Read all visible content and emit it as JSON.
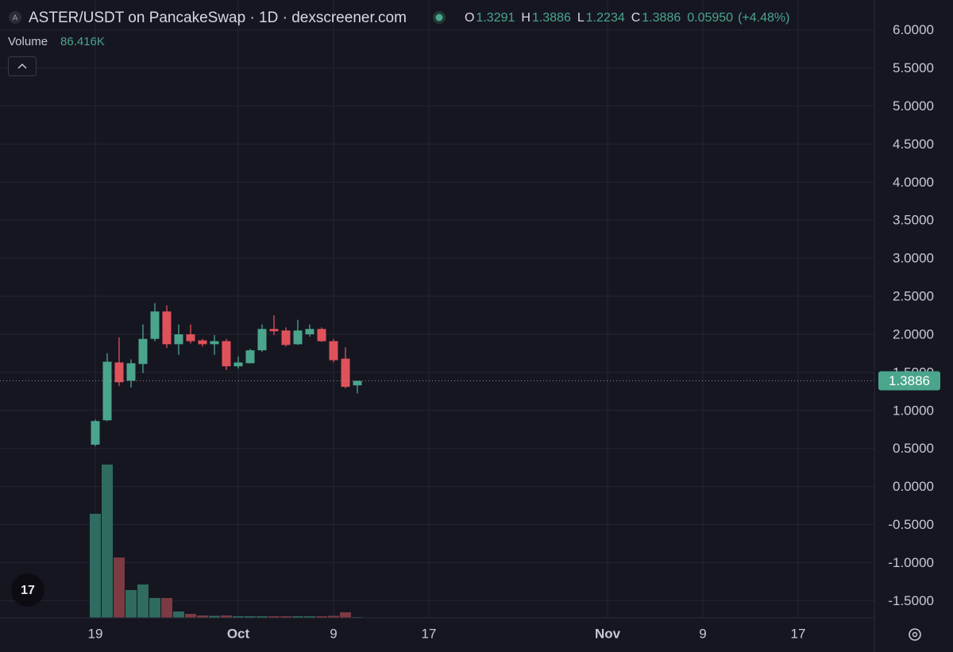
{
  "chart_data": {
    "type": "candlestick",
    "title": "ASTER/USDT on PancakeSwap · 1D · dexscreener.com",
    "ohlc_letters": [
      "O",
      "H",
      "L",
      "C"
    ],
    "change_label": "0.05950",
    "change_pct_label": "(+4.48%)",
    "x": [
      19,
      20,
      21,
      22,
      23,
      24,
      25,
      26,
      27,
      28,
      29,
      30,
      31,
      32,
      33,
      34,
      35,
      36,
      37,
      38,
      39,
      40,
      41
    ],
    "open": [
      0.55,
      0.87,
      1.63,
      1.39,
      1.61,
      1.94,
      2.3,
      1.87,
      2.0,
      1.92,
      1.87,
      1.91,
      1.58,
      1.62,
      1.79,
      2.07,
      2.05,
      1.87,
      2.0,
      2.07,
      1.91,
      1.68,
      1.3291
    ],
    "high": [
      0.88,
      1.75,
      1.96,
      1.67,
      2.13,
      2.41,
      2.38,
      2.13,
      2.13,
      1.94,
      1.99,
      1.94,
      1.71,
      1.81,
      2.13,
      2.25,
      2.09,
      2.19,
      2.13,
      2.09,
      1.94,
      1.83,
      1.3886
    ],
    "low": [
      0.53,
      0.86,
      1.32,
      1.3,
      1.49,
      1.91,
      1.82,
      1.73,
      1.88,
      1.84,
      1.73,
      1.53,
      1.55,
      1.62,
      1.77,
      1.99,
      1.84,
      1.86,
      1.97,
      1.9,
      1.63,
      1.29,
      1.2234
    ],
    "close": [
      0.86,
      1.64,
      1.37,
      1.62,
      1.94,
      2.3,
      1.87,
      2.0,
      1.91,
      1.87,
      1.91,
      1.58,
      1.63,
      1.79,
      2.07,
      2.04,
      1.86,
      2.05,
      2.07,
      1.91,
      1.66,
      1.31,
      1.3886
    ],
    "volume": {
      "name": "Volume",
      "values": [
        13100000,
        19300000,
        7600000,
        3500000,
        4200000,
        2500000,
        2500000,
        800000,
        500000,
        300000,
        250000,
        300000,
        200000,
        200000,
        200000,
        200000,
        200000,
        200000,
        200000,
        200000,
        250000,
        700000,
        86416
      ],
      "value_labels": [
        null,
        null,
        null,
        null,
        null,
        null,
        null,
        null,
        null,
        null,
        null,
        null,
        null,
        null,
        null,
        null,
        null,
        null,
        null,
        null,
        null,
        null,
        "86.416K"
      ]
    },
    "up_color": "#4aa58c",
    "down_color": "#e0525a",
    "volume_up_color": "#2f6b5f",
    "volume_down_color": "#7c3a42",
    "xlim": [
      11,
      84.4
    ],
    "xticks": [
      19,
      {
        "value": 31,
        "label": "Oct"
      },
      {
        "value": 39,
        "label": "9"
      },
      {
        "value": 47,
        "label": "17"
      },
      {
        "value": 62,
        "label": "Nov"
      },
      {
        "value": 70,
        "label": "9"
      },
      {
        "value": 78,
        "label": "17"
      }
    ],
    "ylim": [
      -1.7261,
      6.3934
    ],
    "yticks": [
      {
        "value": 6,
        "label": "6.0000"
      },
      {
        "value": 5.5,
        "label": "5.5000"
      },
      {
        "value": 5,
        "label": "5.0000"
      },
      {
        "value": 4.5,
        "label": "4.5000"
      },
      {
        "value": 4,
        "label": "4.0000"
      },
      {
        "value": 3.5,
        "label": "3.5000"
      },
      {
        "value": 3,
        "label": "3.0000"
      },
      {
        "value": 2.5,
        "label": "2.5000"
      },
      {
        "value": 2,
        "label": "2.0000"
      },
      {
        "value": 1.5,
        "label": "1.5000"
      },
      {
        "value": 1,
        "label": "1.0000"
      },
      {
        "value": 0.5,
        "label": "0.5000"
      },
      {
        "value": 0,
        "label": "0.0000"
      },
      {
        "value": -0.5,
        "label": "-0.5000"
      },
      {
        "value": -1,
        "label": "-1.0000"
      },
      {
        "value": -1.5,
        "label": "-1.5000"
      }
    ],
    "grid": true
  }
}
